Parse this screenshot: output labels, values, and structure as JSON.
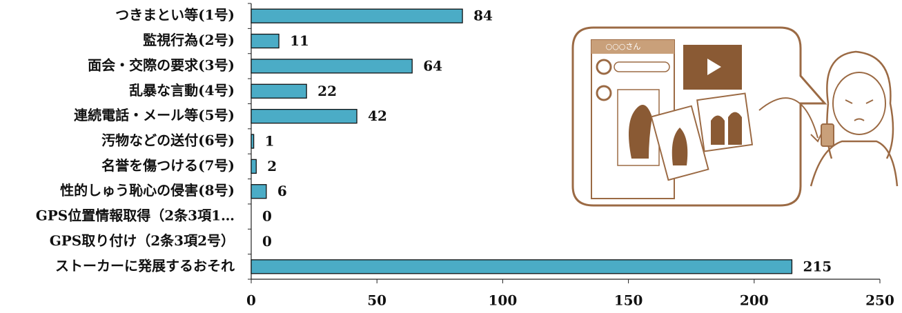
{
  "chart_data": {
    "type": "hbar",
    "categories": [
      "つきまとい等(1号)",
      "監視行為(2号)",
      "面会・交際の要求(3号)",
      "乱暴な言動(4号)",
      "連続電話・メール等(5号)",
      "汚物などの送付(6号)",
      "名誉を傷つける(7号)",
      "性的しゅう恥心の侵害(8号)",
      "GPS位置情報取得（2条3項1…",
      "GPS取り付け（2条3項2号）",
      "ストーカーに発展するおそれ"
    ],
    "values": [
      84,
      11,
      64,
      22,
      42,
      1,
      2,
      6,
      0,
      0,
      215
    ],
    "color": "#4bacc6",
    "xlim": [
      0,
      250
    ],
    "xticks": [
      0,
      50,
      100,
      150,
      200,
      250
    ]
  },
  "illustration": {
    "label": "○○○さん"
  }
}
